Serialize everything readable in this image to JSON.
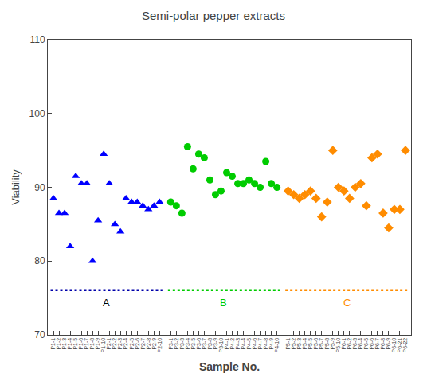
{
  "chart_data": {
    "type": "scatter",
    "title": "Semi-polar pepper extracts",
    "x_label": "Sample No.",
    "y_label": "Viability",
    "ylim": [
      70,
      110
    ],
    "yticks": [
      70,
      80,
      90,
      100,
      110
    ],
    "grid": false,
    "categories": [
      "P1-1",
      "P1-2",
      "P1-3",
      "P1-4",
      "P1-5",
      "P1-6",
      "P1-7",
      "P1-8",
      "P1-9",
      "P1-10",
      "P2-1",
      "P2-2",
      "P2-3",
      "P2-4",
      "P2-5",
      "P2-6",
      "P2-7",
      "P2-8",
      "P2-9",
      "P2-10",
      null,
      "P3-1",
      "P3-2",
      "P3-3",
      "P3-4",
      "P3-5",
      "P3-6",
      "P3-7",
      "P3-8",
      "P3-9",
      "P3-10",
      "P4-1",
      "P4-2",
      "P4-3",
      "P4-4",
      "P4-5",
      "P4-6",
      "P4-7",
      "P4-8",
      "P4-9",
      "P4-10",
      null,
      "P5-1",
      "P5-2",
      "P5-3",
      "P5-4",
      "P5-5",
      "P5-6",
      "P5-7",
      "P5-8",
      "P5-9",
      "P5-10",
      "P6-1",
      "P6-2",
      "P6-3",
      "P6-4",
      "P6-5",
      "P6-6",
      "P6-7",
      "P6-8",
      "P6-9",
      "P6-10",
      "P6-21",
      "P6-22"
    ],
    "series": [
      {
        "color": "#0000FF",
        "marker": "triangle-up",
        "label": {
          "text": "A",
          "color": "#000000"
        },
        "hline": {
          "y": 76.0,
          "color": "#0000AA",
          "line_style": "dotted"
        },
        "values": [
          88.5,
          86.5,
          86.5,
          82.0,
          91.5,
          90.5,
          90.5,
          80.0,
          85.5,
          94.5,
          90.5,
          85.0,
          84.0,
          88.5,
          88.0,
          88.0,
          87.5,
          87.0,
          87.5,
          88.0,
          null,
          null,
          null,
          null,
          null,
          null,
          null,
          null,
          null,
          null,
          null,
          null,
          null,
          null,
          null,
          null,
          null,
          null,
          null,
          null,
          null,
          null,
          null,
          null,
          null,
          null,
          null,
          null,
          null,
          null,
          null,
          null,
          null,
          null,
          null,
          null,
          null,
          null,
          null,
          null,
          null,
          null,
          null,
          null
        ]
      },
      {
        "color": "#00CC00",
        "marker": "circle",
        "label": {
          "text": "B",
          "color": "#00CC00"
        },
        "hline": {
          "y": 76.0,
          "color": "#00CC00",
          "line_style": "dotted"
        },
        "values": [
          null,
          null,
          null,
          null,
          null,
          null,
          null,
          null,
          null,
          null,
          null,
          null,
          null,
          null,
          null,
          null,
          null,
          null,
          null,
          null,
          null,
          88.0,
          87.5,
          86.5,
          95.5,
          92.5,
          94.5,
          94.0,
          91.0,
          89.0,
          89.5,
          92.0,
          91.5,
          90.5,
          90.5,
          91.0,
          90.5,
          90.0,
          93.5,
          90.5,
          90.0,
          null,
          null,
          null,
          null,
          null,
          null,
          null,
          null,
          null,
          null,
          null,
          null,
          null,
          null,
          null,
          null,
          null,
          null,
          null,
          null,
          null,
          null,
          null
        ]
      },
      {
        "color": "#FF8C00",
        "marker": "diamond",
        "label": {
          "text": "C",
          "color": "#FF8C00"
        },
        "hline": {
          "y": 76.0,
          "color": "#FF8C00",
          "line_style": "dotted"
        },
        "values": [
          null,
          null,
          null,
          null,
          null,
          null,
          null,
          null,
          null,
          null,
          null,
          null,
          null,
          null,
          null,
          null,
          null,
          null,
          null,
          null,
          null,
          null,
          null,
          null,
          null,
          null,
          null,
          null,
          null,
          null,
          null,
          null,
          null,
          null,
          null,
          null,
          null,
          null,
          null,
          null,
          null,
          null,
          89.5,
          89.0,
          88.5,
          89.0,
          89.5,
          88.5,
          86.0,
          88.0,
          95.0,
          90.0,
          89.5,
          88.5,
          90.0,
          90.5,
          87.5,
          94.0,
          94.5,
          86.5,
          84.5,
          87.0,
          87.0,
          95.0
        ]
      }
    ]
  }
}
